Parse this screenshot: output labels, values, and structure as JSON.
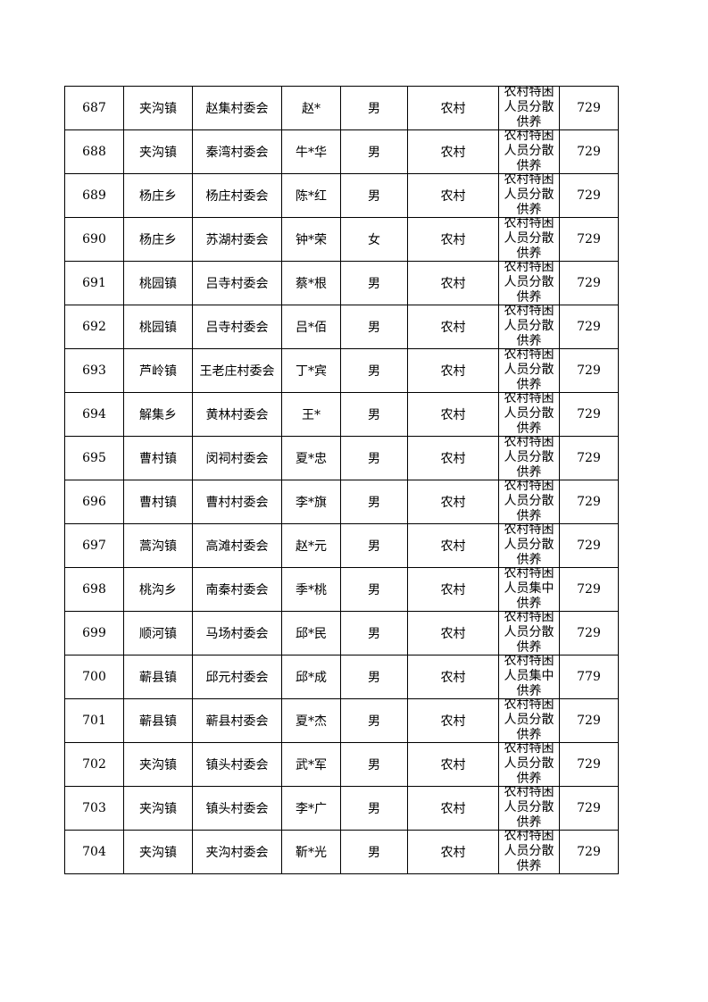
{
  "table": {
    "rows": [
      [
        "687",
        "夹沟镇",
        "赵集村委会",
        "赵*",
        "男",
        "农村",
        "农村特困人员分散供养",
        "729"
      ],
      [
        "688",
        "夹沟镇",
        "秦湾村委会",
        "牛*华",
        "男",
        "农村",
        "农村特困人员分散供养",
        "729"
      ],
      [
        "689",
        "杨庄乡",
        "杨庄村委会",
        "陈*红",
        "男",
        "农村",
        "农村特困人员分散供养",
        "729"
      ],
      [
        "690",
        "杨庄乡",
        "苏湖村委会",
        "钟*荣",
        "女",
        "农村",
        "农村特困人员分散供养",
        "729"
      ],
      [
        "691",
        "桃园镇",
        "吕寺村委会",
        "蔡*根",
        "男",
        "农村",
        "农村特困人员分散供养",
        "729"
      ],
      [
        "692",
        "桃园镇",
        "吕寺村委会",
        "吕*佰",
        "男",
        "农村",
        "农村特困人员分散供养",
        "729"
      ],
      [
        "693",
        "芦岭镇",
        "王老庄村委会",
        "丁*宾",
        "男",
        "农村",
        "农村特困人员分散供养",
        "729"
      ],
      [
        "694",
        "解集乡",
        "黄林村委会",
        "王*",
        "男",
        "农村",
        "农村特困人员分散供养",
        "729"
      ],
      [
        "695",
        "曹村镇",
        "闵祠村委会",
        "夏*忠",
        "男",
        "农村",
        "农村特困人员分散供养",
        "729"
      ],
      [
        "696",
        "曹村镇",
        "曹村村委会",
        "李*旗",
        "男",
        "农村",
        "农村特困人员分散供养",
        "729"
      ],
      [
        "697",
        "蒿沟镇",
        "高滩村委会",
        "赵*元",
        "男",
        "农村",
        "农村特困人员分散供养",
        "729"
      ],
      [
        "698",
        "桃沟乡",
        "南秦村委会",
        "季*桃",
        "男",
        "农村",
        "农村特困人员集中供养",
        "729"
      ],
      [
        "699",
        "顺河镇",
        "马场村委会",
        "邱*民",
        "男",
        "农村",
        "农村特困人员分散供养",
        "729"
      ],
      [
        "700",
        "蕲县镇",
        "邱元村委会",
        "邱*成",
        "男",
        "农村",
        "农村特困人员集中供养",
        "779"
      ],
      [
        "701",
        "蕲县镇",
        "蕲县村委会",
        "夏*杰",
        "男",
        "农村",
        "农村特困人员分散供养",
        "729"
      ],
      [
        "702",
        "夹沟镇",
        "镇头村委会",
        "武*军",
        "男",
        "农村",
        "农村特困人员分散供养",
        "729"
      ],
      [
        "703",
        "夹沟镇",
        "镇头村委会",
        "李*广",
        "男",
        "农村",
        "农村特困人员分散供养",
        "729"
      ],
      [
        "704",
        "夹沟镇",
        "夹沟村委会",
        "靳*光",
        "男",
        "农村",
        "农村特困人员分散供养",
        "729"
      ]
    ]
  }
}
